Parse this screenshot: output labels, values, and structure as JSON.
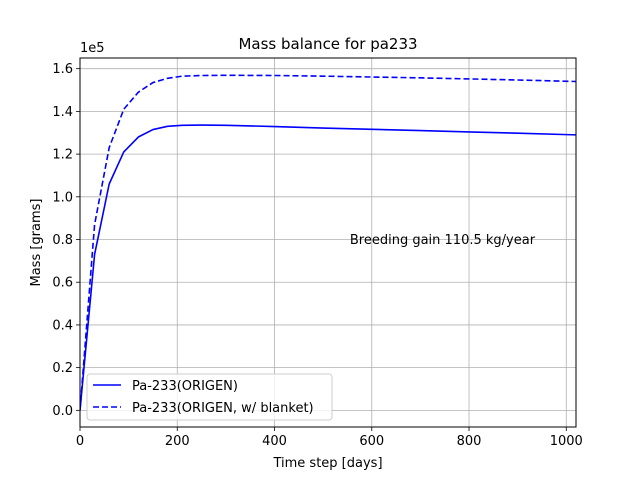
{
  "chart_data": {
    "type": "line",
    "title": "Mass balance for pa233",
    "xlabel": "Time step [days]",
    "ylabel": "Mass [grams]",
    "offset_label": "1e5",
    "xlim": [
      0,
      1020
    ],
    "ylim": [
      -0.078,
      1.65
    ],
    "y_scale_factor": 100000,
    "grid": true,
    "legend_position": "lower-left",
    "x_ticks": [
      0,
      200,
      400,
      600,
      800,
      1000
    ],
    "x_tick_labels": [
      "0",
      "200",
      "400",
      "600",
      "800",
      "1000"
    ],
    "y_ticks": [
      0.0,
      0.2,
      0.4,
      0.6,
      0.8,
      1.0,
      1.2,
      1.4,
      1.6
    ],
    "y_tick_labels": [
      "0.0",
      "0.2",
      "0.4",
      "0.6",
      "0.8",
      "1.0",
      "1.2",
      "1.4",
      "1.6"
    ],
    "annotation": {
      "text": "Breeding gain  110.5 kg/year",
      "x": 555,
      "y": 0.78
    },
    "series": [
      {
        "name": "Pa-233(ORIGEN)",
        "color": "#0000ff",
        "linestyle": "solid",
        "x": [
          0,
          30,
          60,
          90,
          120,
          150,
          180,
          210,
          250,
          300,
          400,
          500,
          600,
          700,
          800,
          900,
          1020
        ],
        "y": [
          0.0,
          0.73,
          1.06,
          1.21,
          1.28,
          1.315,
          1.33,
          1.335,
          1.336,
          1.335,
          1.329,
          1.322,
          1.316,
          1.31,
          1.304,
          1.298,
          1.29
        ]
      },
      {
        "name": "Pa-233(ORIGEN, w/ blanket)",
        "color": "#0000ff",
        "linestyle": "dashed",
        "x": [
          0,
          30,
          60,
          90,
          120,
          150,
          180,
          210,
          250,
          300,
          400,
          500,
          600,
          700,
          800,
          900,
          1020
        ],
        "y": [
          0.0,
          0.87,
          1.23,
          1.41,
          1.49,
          1.535,
          1.555,
          1.565,
          1.568,
          1.569,
          1.568,
          1.565,
          1.561,
          1.557,
          1.552,
          1.547,
          1.54
        ]
      }
    ]
  }
}
